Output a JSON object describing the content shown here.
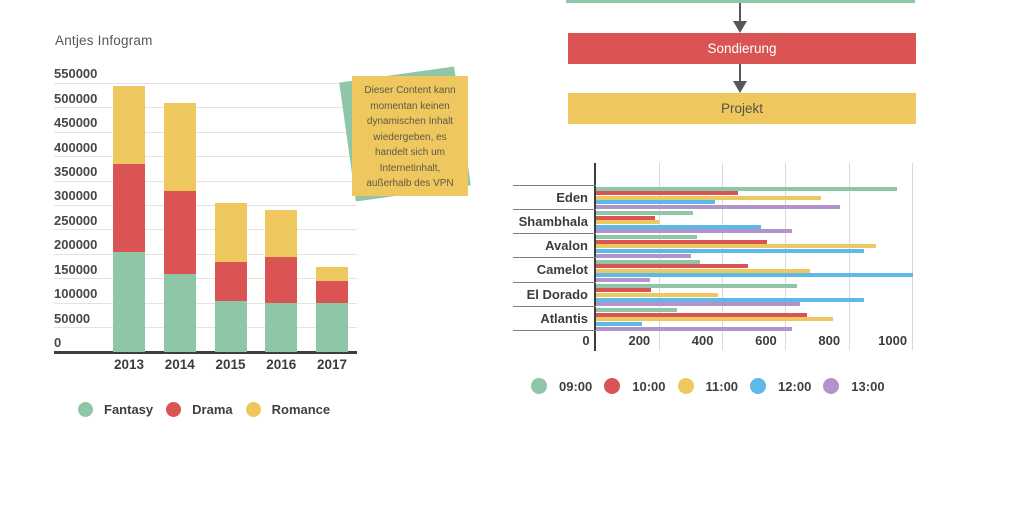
{
  "chart_data": [
    {
      "id": "antjes-infogram",
      "type": "bar",
      "stacked": true,
      "orientation": "vertical",
      "title": "Antjes Infogram",
      "categories": [
        "2013",
        "2014",
        "2015",
        "2016",
        "2017"
      ],
      "series": [
        {
          "name": "Fantasy",
          "color": "#8ec6a7",
          "values": [
            205000,
            160000,
            105000,
            100000,
            100000
          ]
        },
        {
          "name": "Drama",
          "color": "#d95452",
          "values": [
            180000,
            170000,
            80000,
            95000,
            45000
          ]
        },
        {
          "name": "Romance",
          "color": "#eec75e",
          "values": [
            160000,
            180000,
            120000,
            95000,
            30000
          ]
        }
      ],
      "xlabel": "",
      "ylabel": "",
      "ylim": [
        0,
        550000
      ],
      "yticks": [
        0,
        50000,
        100000,
        150000,
        200000,
        250000,
        300000,
        350000,
        400000,
        450000,
        500000,
        550000
      ],
      "grid": true,
      "legend_position": "bottom"
    },
    {
      "id": "hours-by-place",
      "type": "bar",
      "stacked": false,
      "orientation": "horizontal",
      "title": "",
      "categories": [
        "Eden",
        "Shambhala",
        "Avalon",
        "Camelot",
        "El Dorado",
        "Atlantis"
      ],
      "series": [
        {
          "name": "09:00",
          "color": "#8ec6a7",
          "values": [
            950,
            305,
            320,
            330,
            635,
            255
          ]
        },
        {
          "name": "10:00",
          "color": "#d95452",
          "values": [
            450,
            185,
            540,
            480,
            175,
            665
          ]
        },
        {
          "name": "11:00",
          "color": "#eec75e",
          "values": [
            710,
            200,
            885,
            675,
            385,
            750
          ]
        },
        {
          "name": "12:00",
          "color": "#5db9e8",
          "values": [
            375,
            520,
            845,
            1000,
            845,
            145
          ]
        },
        {
          "name": "13:00",
          "color": "#b294cb",
          "values": [
            770,
            620,
            300,
            170,
            645,
            620
          ]
        }
      ],
      "xlim": [
        0,
        1000
      ],
      "xticks": [
        0,
        200,
        400,
        600,
        800,
        1000
      ],
      "grid": true,
      "legend_position": "bottom"
    }
  ],
  "flowchart": {
    "top_node": {
      "color": "#8ec6a7"
    },
    "nodes": [
      {
        "label": "Sondierung",
        "color": "#d95452",
        "text_color": "#ffffff"
      },
      {
        "label": "Projekt",
        "color": "#eec75e",
        "text_color": "#55544b"
      }
    ],
    "arrow_color": "#55585a"
  },
  "sticky_note": {
    "text": "Dieser Content kann momentan keinen dynamischen Inhalt wiedergeben, es handelt sich um Internetinhalt, außerhalb des VPN",
    "front_color": "#eec75e",
    "back_color": "#8ec6a7",
    "text_color": "#5c5b49"
  }
}
